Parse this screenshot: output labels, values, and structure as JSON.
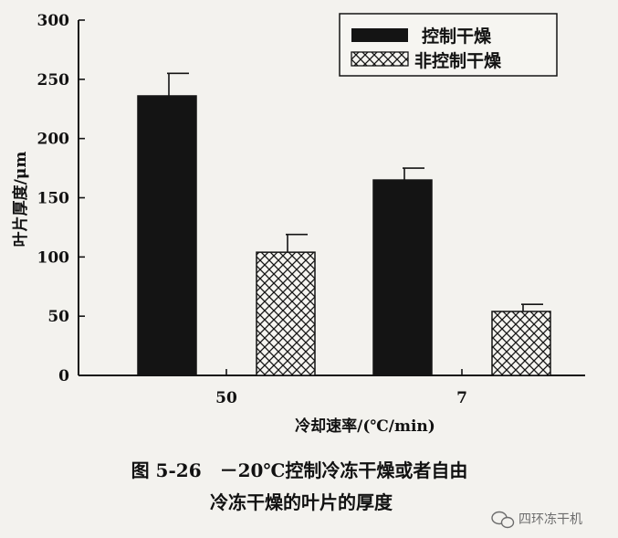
{
  "chart_data": {
    "type": "bar",
    "categories": [
      "50",
      "7"
    ],
    "series": [
      {
        "name": "控制干燥",
        "values": [
          236,
          165
        ],
        "errors": [
          19,
          10
        ],
        "fill": "solid",
        "color": "#141414"
      },
      {
        "name": "非控制干燥",
        "values": [
          104,
          54
        ],
        "errors": [
          15,
          6
        ],
        "fill": "crosshatch",
        "color": "#141414"
      }
    ],
    "title": "",
    "xlabel": "冷却速率/(℃/min)",
    "ylabel": "叶片厚度/μm",
    "ylim": [
      0,
      300
    ],
    "yticks": [
      0,
      50,
      100,
      150,
      200,
      250,
      300
    ],
    "grid": false,
    "legend_position": "top-right"
  },
  "caption": {
    "line1": "图 5-26　－20℃控制冷冻干燥或者自由",
    "line2": "冷冻干燥的叶片的厚度"
  },
  "watermark": {
    "text": "四环冻干机",
    "icon": "wechat-icon"
  }
}
